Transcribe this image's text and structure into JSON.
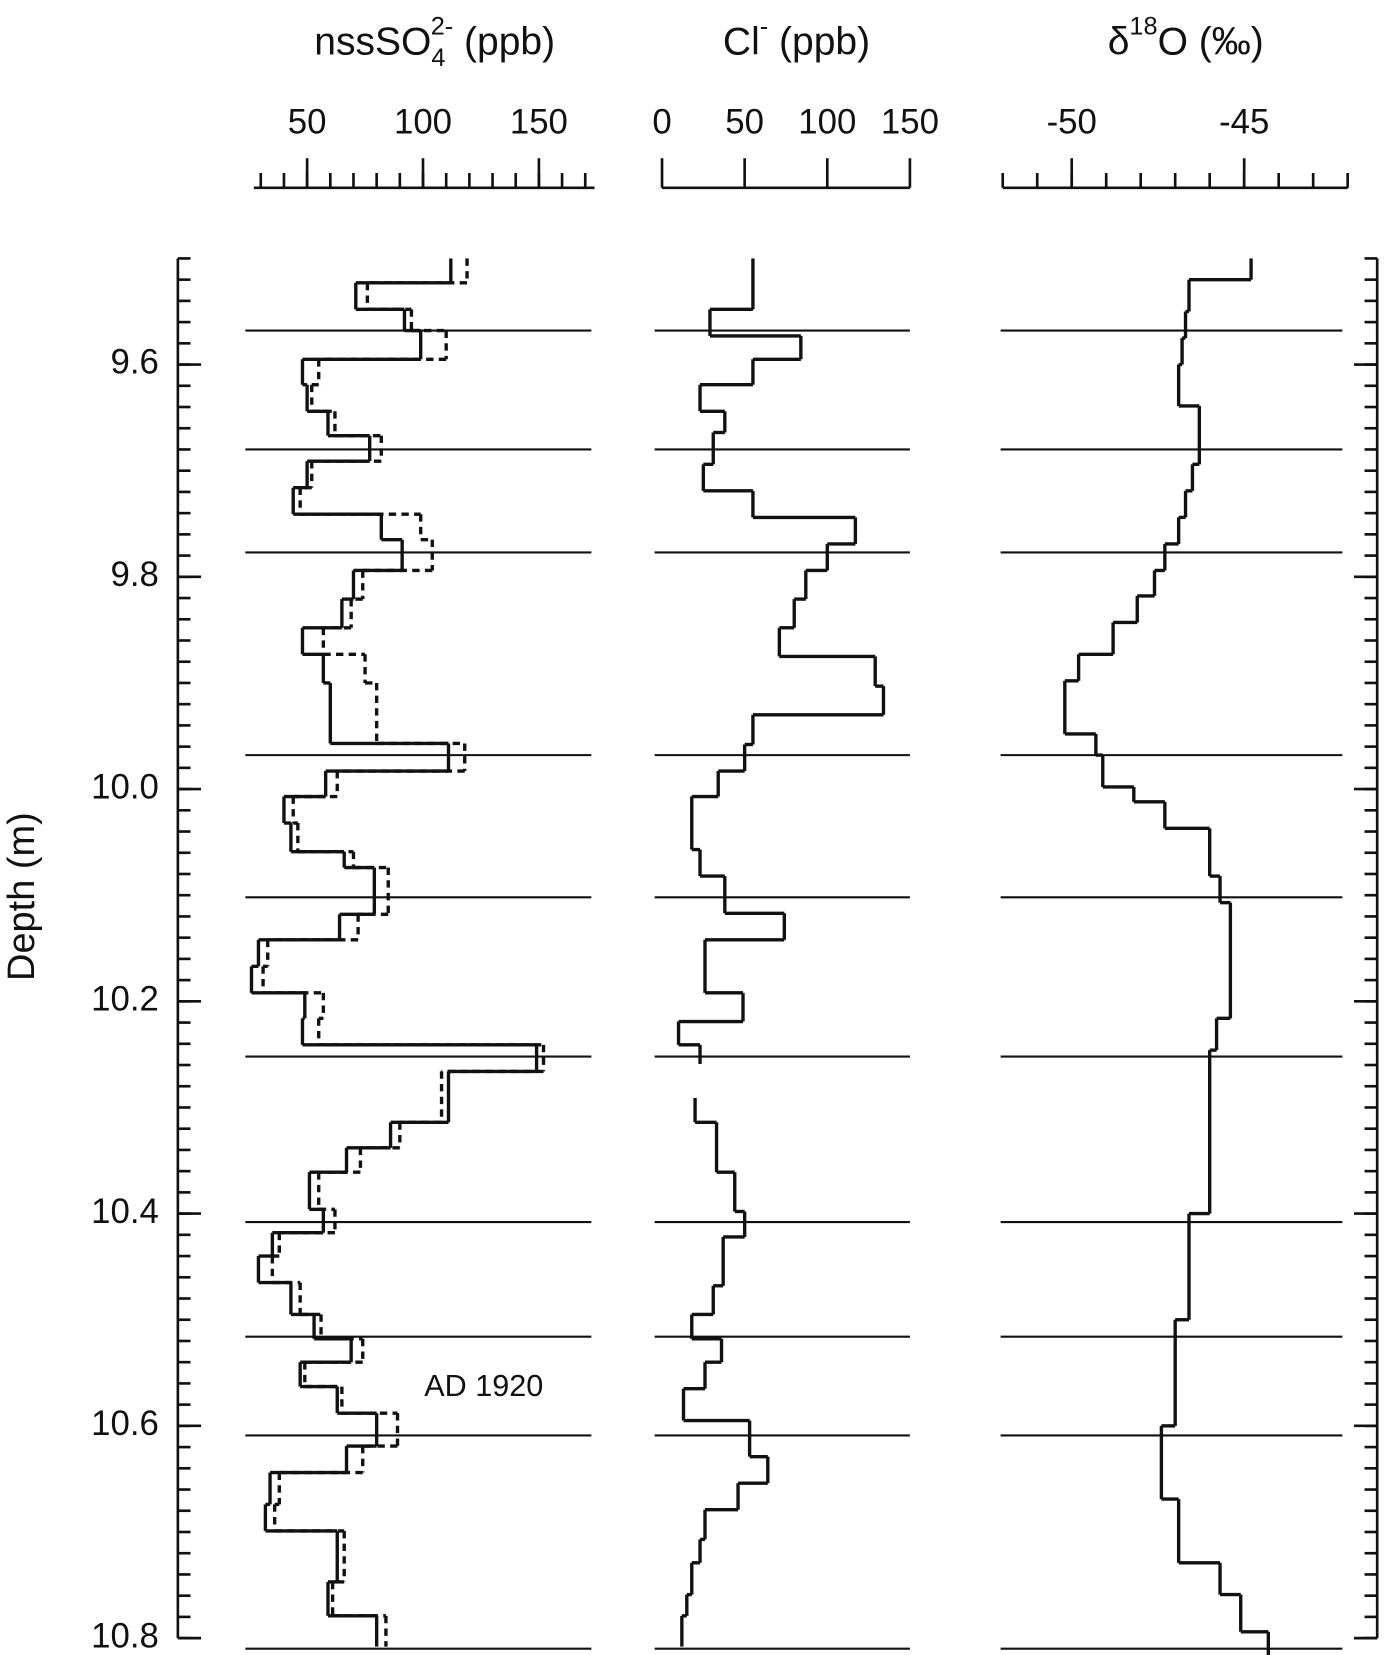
{
  "chart_data": [
    {
      "type": "step",
      "title_parts": [
        {
          "text": "nssSO"
        },
        {
          "text": "4",
          "shift": "sub"
        },
        {
          "text": "2-",
          "shift": "sup"
        },
        {
          "text": " (ppb)"
        }
      ],
      "xlim": [
        27,
        174
      ],
      "xticks": [
        50,
        100,
        150
      ],
      "minor_divisions": 5,
      "ylabel": "Depth (m)",
      "ylim": [
        9.5,
        10.8
      ],
      "yticks": [
        9.6,
        9.8,
        {
          "value": 10.0,
          "label": "10.0"
        },
        10.2,
        10.4,
        10.6,
        10.8
      ],
      "yminor_divisions": 10,
      "layer_depths": [
        9.568,
        9.68,
        9.777,
        9.968,
        10.102,
        10.252,
        10.408,
        10.516,
        10.609,
        10.81
      ],
      "annotation": "AD 1920",
      "depths": [
        9.5,
        9.523,
        9.548,
        9.568,
        9.595,
        9.619,
        9.644,
        9.667,
        9.691,
        9.716,
        9.741,
        9.765,
        9.794,
        9.821,
        9.848,
        9.873,
        9.9,
        9.957,
        9.983,
        10.007,
        10.032,
        10.059,
        10.074,
        10.118,
        10.142,
        10.167,
        10.192,
        10.216,
        10.241,
        10.266,
        10.314,
        10.338,
        10.361,
        10.396,
        10.418,
        10.44,
        10.465,
        10.495,
        10.518,
        10.54,
        10.563,
        10.588,
        10.619,
        10.644,
        10.674,
        10.699,
        10.747,
        10.779,
        10.808
      ],
      "series": [
        {
          "color": "#111111",
          "dash": false,
          "values": [
            112,
            71,
            92,
            99,
            48,
            50,
            59,
            77,
            50,
            44,
            82,
            91,
            70,
            65,
            48,
            57,
            60,
            111,
            58,
            40,
            43,
            66,
            79,
            64,
            29,
            26,
            49,
            48,
            149,
            111,
            86,
            67,
            51,
            57,
            35,
            29,
            43,
            53,
            69,
            47,
            63,
            80,
            67,
            34,
            32,
            63,
            59,
            80
          ]
        },
        {
          "color": "#111111",
          "dash": true,
          "values": [
            119,
            76,
            95,
            110,
            55,
            52,
            62,
            82,
            52,
            47,
            99,
            104,
            74,
            69,
            57,
            75,
            80,
            118,
            63,
            44,
            46,
            70,
            85,
            72,
            33,
            31,
            57,
            55,
            152,
            108,
            90,
            73,
            55,
            62,
            38,
            35,
            47,
            56,
            74,
            49,
            65,
            89,
            74,
            38,
            36,
            66,
            61,
            84
          ]
        }
      ]
    },
    {
      "type": "step",
      "title_parts": [
        {
          "text": "Cl"
        },
        {
          "text": "-",
          "shift": "sup"
        },
        {
          "text": " (ppb)"
        }
      ],
      "xlim": [
        0,
        150
      ],
      "xticks": [
        0,
        50,
        100,
        150
      ],
      "minor_divisions": 0,
      "ylim": [
        9.5,
        10.8
      ],
      "depths": [
        9.5,
        9.548,
        9.573,
        9.595,
        9.619,
        9.644,
        9.664,
        9.694,
        9.719,
        9.744,
        9.769,
        9.794,
        9.821,
        9.848,
        9.875,
        9.903,
        9.93,
        9.958,
        9.983,
        10.007,
        10.057,
        10.082,
        10.117,
        10.142,
        10.192,
        10.219,
        10.241,
        10.259,
        10.291,
        10.314,
        10.361,
        10.398,
        10.422,
        10.468,
        10.495,
        10.518,
        10.54,
        10.565,
        10.595,
        10.629,
        10.654,
        10.679,
        10.707,
        10.729,
        10.759,
        10.779,
        10.808
      ],
      "series": [
        {
          "color": "#111111",
          "dash": false,
          "values": [
            55,
            29,
            84,
            55,
            23,
            38,
            31,
            25,
            55,
            117,
            100,
            87,
            80,
            71,
            129,
            134,
            55,
            50,
            34,
            18,
            23,
            38,
            74,
            26,
            49,
            10,
            23,
            null,
            20,
            33,
            44,
            50,
            37,
            31,
            18,
            36,
            26,
            13,
            53,
            64,
            46,
            26,
            23,
            18,
            15,
            12
          ]
        }
      ]
    },
    {
      "type": "step",
      "title_parts": [
        {
          "text": "δ"
        },
        {
          "text": "18",
          "shift": "sup"
        },
        {
          "text": "O (‰)"
        }
      ],
      "xlim": [
        -52,
        -42
      ],
      "xticks": [
        -50,
        -45
      ],
      "minor_divisions": 5,
      "ylim": [
        9.5,
        10.8
      ],
      "depths": [
        9.5,
        9.52,
        9.55,
        9.575,
        9.6,
        9.639,
        9.694,
        9.719,
        9.744,
        9.769,
        9.794,
        9.818,
        9.843,
        9.873,
        9.898,
        9.948,
        9.968,
        9.998,
        10.012,
        10.037,
        10.082,
        10.107,
        10.216,
        10.246,
        10.4,
        10.5,
        10.6,
        10.669,
        10.729,
        10.759,
        10.794,
        10.819
      ],
      "series": [
        {
          "color": "#111111",
          "dash": false,
          "values": [
            -44.8,
            -46.6,
            -46.7,
            -46.8,
            -46.9,
            -46.3,
            -46.5,
            -46.7,
            -46.9,
            -47.3,
            -47.6,
            -48.1,
            -48.8,
            -49.8,
            -50.2,
            -49.3,
            -49.1,
            -48.2,
            -47.3,
            -46.0,
            -45.7,
            -45.4,
            -45.8,
            -46.0,
            -46.6,
            -47.0,
            -47.4,
            -46.9,
            -45.7,
            -45.1,
            -44.3
          ]
        }
      ]
    }
  ]
}
